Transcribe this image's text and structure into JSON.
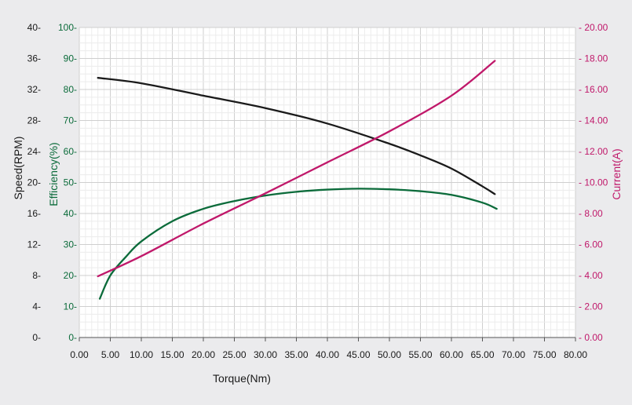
{
  "chart_data": {
    "type": "line",
    "xlabel": "Torque(Nm)",
    "xlim": [
      0,
      80
    ],
    "xticks": [
      "0.00",
      "5.00",
      "10.00",
      "15.00",
      "20.00",
      "25.00",
      "30.00",
      "35.00",
      "40.00",
      "45.00",
      "50.00",
      "55.00",
      "60.00",
      "65.00",
      "70.00",
      "75.00",
      "80.00"
    ],
    "grid": true,
    "axes": {
      "speed": {
        "label": "Speed(RPM)",
        "side": "left-outer",
        "color": "#1a1a1a",
        "lim": [
          0,
          40
        ],
        "ticks": [
          "0-",
          "4-",
          "8-",
          "12-",
          "16-",
          "20-",
          "24-",
          "28-",
          "32-",
          "36-",
          "40-"
        ]
      },
      "efficiency": {
        "label": "Efficiency(%)",
        "side": "left-inner",
        "color": "#0b6b3a",
        "lim": [
          0,
          100
        ],
        "ticks": [
          "0-",
          "10-",
          "20-",
          "30-",
          "40-",
          "50-",
          "60-",
          "70-",
          "80-",
          "90-",
          "100-"
        ]
      },
      "current": {
        "label": "Current(A)",
        "side": "right",
        "color": "#c0186a",
        "lim": [
          0,
          20
        ],
        "ticks": [
          "- 0.00",
          "- 2.00",
          "- 4.00",
          "- 6.00",
          "- 8.00",
          "- 10.00",
          "- 12.00",
          "- 14.00",
          "- 16.00",
          "- 18.00",
          "- 20.00"
        ]
      }
    },
    "series": [
      {
        "axis": "speed",
        "color": "#1a1a1a",
        "x": [
          3,
          10,
          20,
          30,
          40,
          50,
          55,
          60,
          65,
          67
        ],
        "y": [
          33.5,
          32.8,
          31.2,
          29.6,
          27.6,
          25,
          23.5,
          21.8,
          19.5,
          18.5
        ]
      },
      {
        "axis": "efficiency",
        "color": "#0b6b3a",
        "x": [
          3.3,
          5,
          7.5,
          10,
          15,
          20,
          25,
          30,
          35,
          40,
          45,
          50,
          55,
          60,
          65,
          67.3
        ],
        "y": [
          12.5,
          20,
          26,
          31,
          37.5,
          41.5,
          44,
          45.8,
          47,
          47.7,
          48,
          47.8,
          47.2,
          46,
          43.5,
          41.5
        ]
      },
      {
        "axis": "current",
        "color": "#c0186a",
        "x": [
          3,
          10,
          20,
          30,
          40,
          50,
          60,
          67
        ],
        "y": [
          3.95,
          5.25,
          7.35,
          9.3,
          11.3,
          13.3,
          15.6,
          17.85
        ]
      }
    ]
  }
}
